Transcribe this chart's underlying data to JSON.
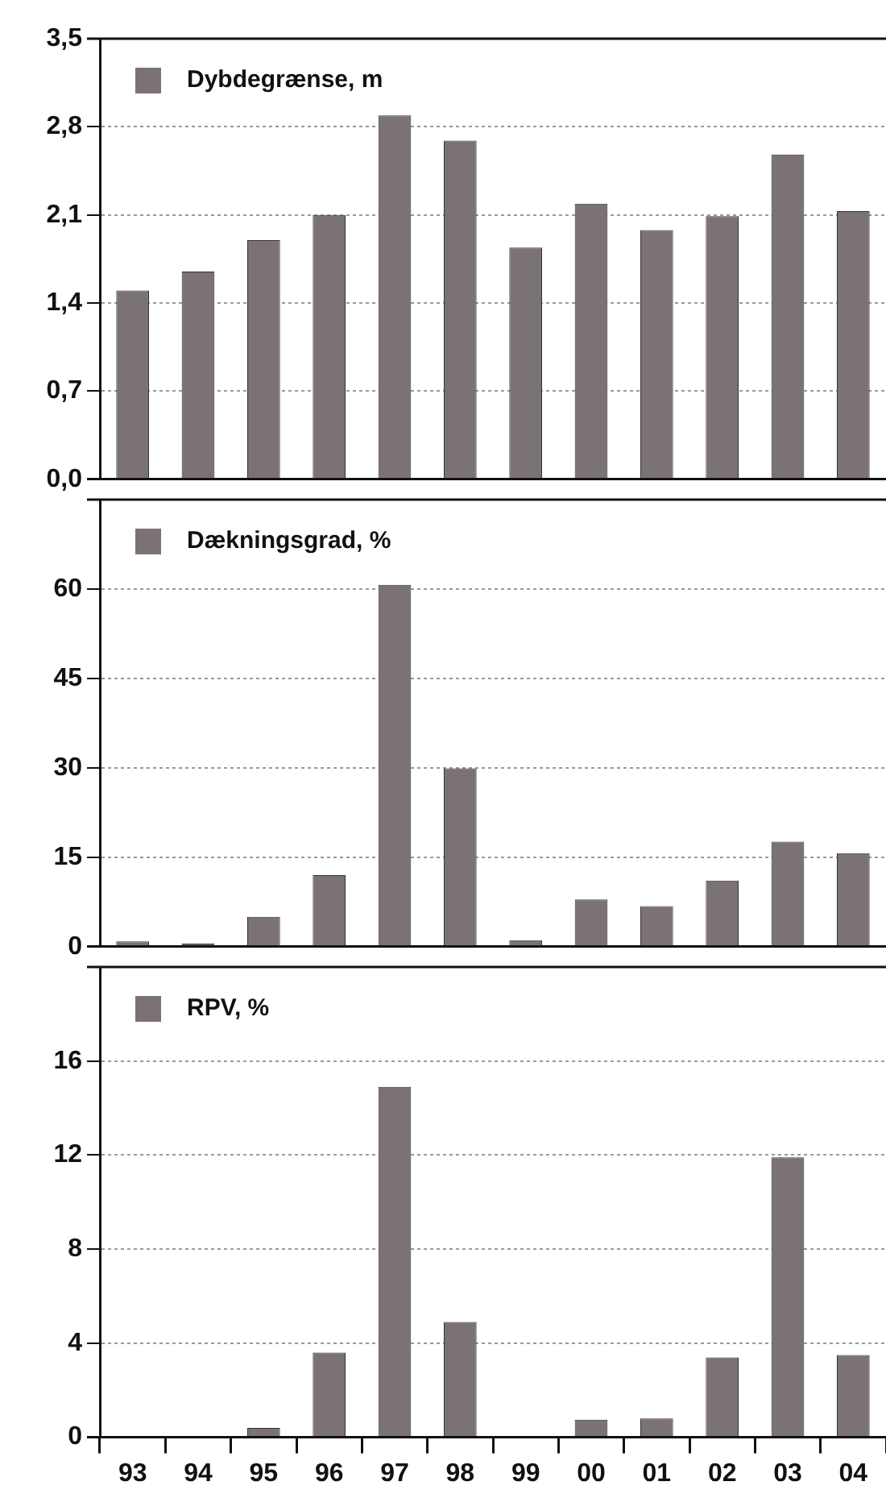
{
  "chart_data": [
    {
      "type": "bar",
      "categories": [
        "93",
        "94",
        "95",
        "96",
        "97",
        "98",
        "99",
        "00",
        "01",
        "02",
        "03",
        "04"
      ],
      "series": [
        {
          "name": "Dybdegrænse, m",
          "color": "#7a7273",
          "values": [
            1.5,
            1.65,
            1.9,
            2.1,
            2.89,
            2.69,
            1.84,
            2.19,
            1.98,
            2.09,
            2.58,
            2.13
          ]
        }
      ],
      "ylim": [
        0,
        3.5
      ],
      "yticks": [
        {
          "value": 0,
          "label": "0,0"
        },
        {
          "value": 0.7,
          "label": "0,7"
        },
        {
          "value": 1.4,
          "label": "1,4"
        },
        {
          "value": 2.1,
          "label": "2,1"
        },
        {
          "value": 2.8,
          "label": "2,8"
        },
        {
          "value": 3.5,
          "label": "3,5"
        }
      ],
      "grid": "y",
      "legend": "top left",
      "tick_labels": "y"
    },
    {
      "type": "bar",
      "categories": [
        "93",
        "94",
        "95",
        "96",
        "97",
        "98",
        "99",
        "00",
        "01",
        "02",
        "03",
        "04"
      ],
      "series": [
        {
          "name": "Dækningsgrad, %",
          "color": "#7a7273",
          "values": [
            0.9,
            0.5,
            5,
            12,
            60.7,
            29.9,
            1.1,
            7.9,
            6.8,
            11.1,
            17.6,
            15.7
          ]
        }
      ],
      "ylim": [
        0,
        75
      ],
      "yticks": [
        0,
        15,
        30,
        45,
        60
      ],
      "grid": "y",
      "legend": "top left",
      "tick_labels": "y"
    },
    {
      "type": "bar",
      "categories": [
        "93",
        "94",
        "95",
        "96",
        "97",
        "98",
        "99",
        "00",
        "01",
        "02",
        "03",
        "04"
      ],
      "series": [
        {
          "name": "RPV, %",
          "color": "#7a7273",
          "values": [
            0,
            0,
            0.4,
            3.6,
            14.9,
            4.9,
            0,
            0.75,
            0.8,
            3.4,
            11.9,
            3.5
          ]
        }
      ],
      "ylim": [
        0,
        20
      ],
      "yticks": [
        0,
        4,
        8,
        12,
        16
      ],
      "grid": "y",
      "legend": "top left"
    }
  ]
}
